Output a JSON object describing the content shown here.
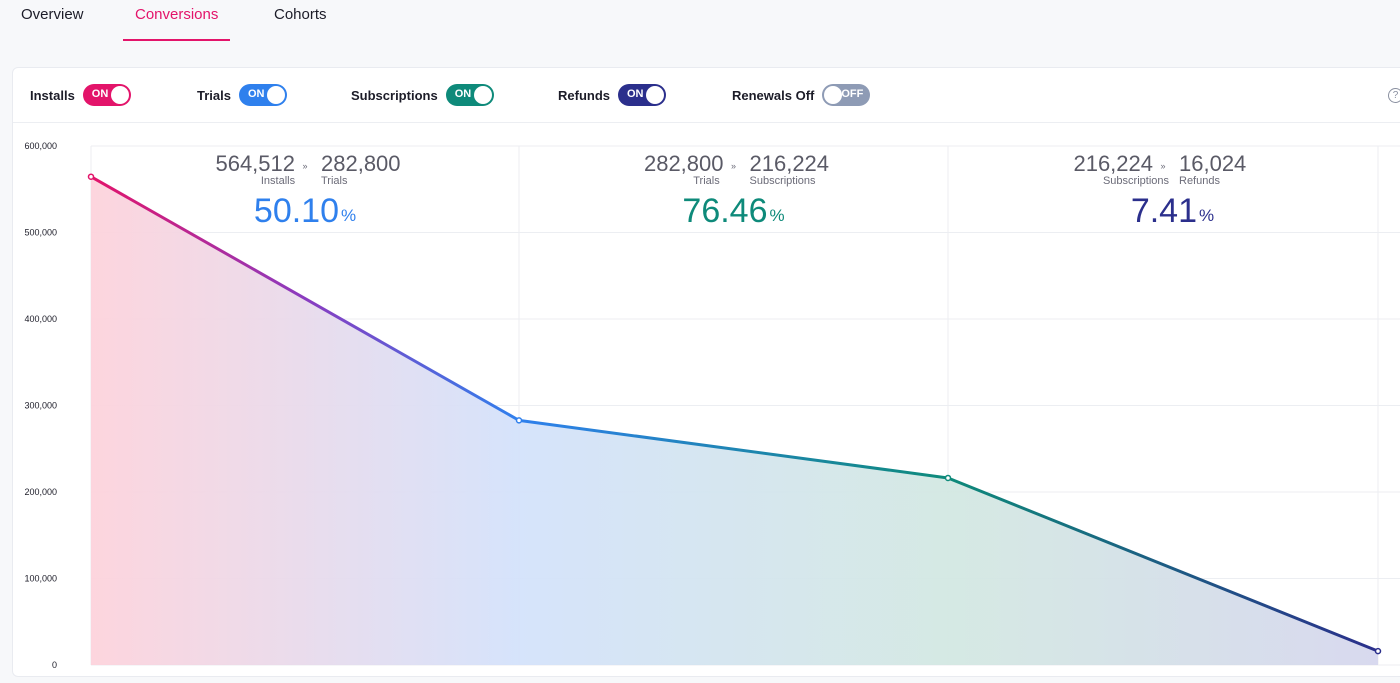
{
  "tabs": [
    {
      "label": "Overview",
      "active": false
    },
    {
      "label": "Conversions",
      "active": true
    },
    {
      "label": "Cohorts",
      "active": false
    }
  ],
  "toggles": [
    {
      "label": "Installs",
      "state": "ON",
      "color": "#e3146a"
    },
    {
      "label": "Trials",
      "state": "ON",
      "color": "#2f80ed"
    },
    {
      "label": "Subscriptions",
      "state": "ON",
      "color": "#0e8a7a"
    },
    {
      "label": "Refunds",
      "state": "ON",
      "color": "#2b2f8c"
    },
    {
      "label": "Renewals Off",
      "state": "OFF",
      "color": "#8e9bb5"
    }
  ],
  "help_icon": "question-circle-icon",
  "colors": {
    "accent": "#e3146a",
    "installs": "#e3146a",
    "trials": "#2f80ed",
    "subscriptions": "#0e8a7a",
    "refunds": "#2b2f8c"
  },
  "steps": [
    {
      "from_value": "564,512",
      "from_label": "Installs",
      "to_value": "282,800",
      "to_label": "Trials",
      "rate": "50.10",
      "unit": "%",
      "color": "#2f80ed"
    },
    {
      "from_value": "282,800",
      "from_label": "Trials",
      "to_value": "216,224",
      "to_label": "Subscriptions",
      "rate": "76.46",
      "unit": "%",
      "color": "#0e8a7a"
    },
    {
      "from_value": "216,224",
      "from_label": "Subscriptions",
      "to_value": "16,024",
      "to_label": "Refunds",
      "rate": "7.41",
      "unit": "%",
      "color": "#2b2f8c"
    }
  ],
  "chart_data": {
    "type": "area",
    "categories": [
      "Installs",
      "Trials",
      "Subscriptions",
      "Refunds"
    ],
    "values": [
      564512,
      282800,
      216224,
      16024
    ],
    "ylim": [
      0,
      600000
    ],
    "yticks": [
      "0",
      "100,000",
      "200,000",
      "300,000",
      "400,000",
      "500,000",
      "600,000"
    ],
    "grid": true
  }
}
